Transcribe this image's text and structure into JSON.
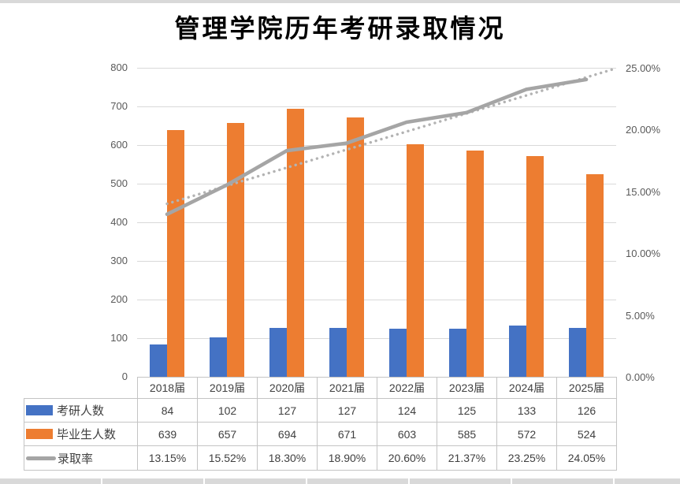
{
  "chart": {
    "title": "管理学院历年考研录取情况",
    "chart_data": {
      "type": "combo",
      "title": "管理学院历年考研录取情况",
      "categories": [
        "2018届",
        "2019届",
        "2020届",
        "2021届",
        "2022届",
        "2023届",
        "2024届",
        "2025届"
      ],
      "series": [
        {
          "name": "考研人数",
          "marker": "bar",
          "axis": "left",
          "color": "#4472C4",
          "values": [
            84,
            102,
            127,
            127,
            124,
            125,
            133,
            126
          ],
          "labels": [
            "84",
            "102",
            "127",
            "127",
            "124",
            "125",
            "133",
            "126"
          ]
        },
        {
          "name": "毕业生人数",
          "marker": "bar",
          "axis": "left",
          "color": "#ED7D31",
          "values": [
            639,
            657,
            694,
            671,
            603,
            585,
            572,
            524
          ],
          "labels": [
            "639",
            "657",
            "694",
            "671",
            "603",
            "585",
            "572",
            "524"
          ]
        },
        {
          "name": "录取率",
          "marker": "line",
          "axis": "right",
          "color": "#A5A5A5",
          "values": [
            13.15,
            15.52,
            18.3,
            18.9,
            20.6,
            21.37,
            23.25,
            24.05
          ],
          "labels": [
            "13.15%",
            "15.52%",
            "18.30%",
            "18.90%",
            "20.60%",
            "21.37%",
            "23.25%",
            "24.05%"
          ]
        }
      ],
      "trendline": {
        "series": "录取率",
        "type": "linear",
        "style": "dotted",
        "color": "#b3b3b3",
        "start_pct": 14.0,
        "end_pct": 24.9
      },
      "left_axis": {
        "min": 0,
        "max": 800,
        "step": 100,
        "ticks": [
          "0",
          "100",
          "200",
          "300",
          "400",
          "500",
          "600",
          "700",
          "800"
        ]
      },
      "right_axis": {
        "min": 0,
        "max": 25,
        "step": 5,
        "ticks": [
          "0.00%",
          "5.00%",
          "10.00%",
          "15.00%",
          "20.00%",
          "25.00%"
        ]
      },
      "grid": true,
      "gridline_color": "#d9d9d9",
      "legend_position": "data-table",
      "data_table": true
    }
  }
}
